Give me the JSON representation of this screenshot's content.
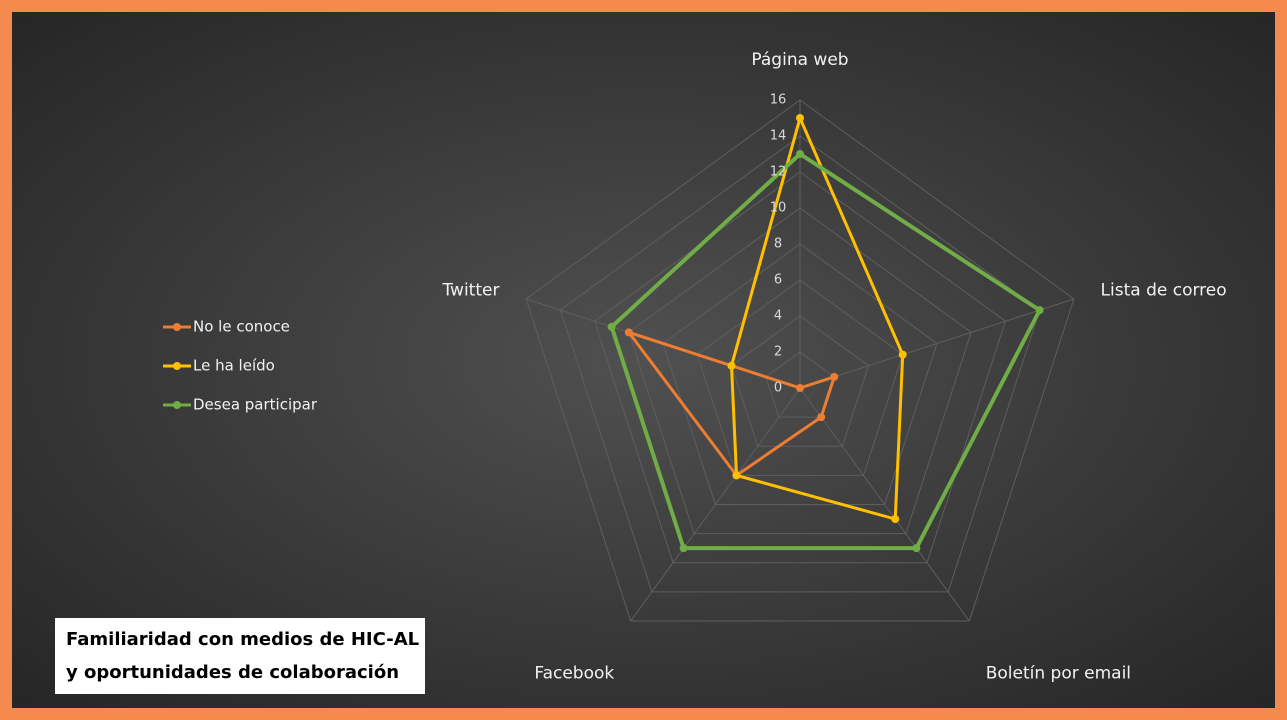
{
  "chart_data": {
    "type": "radar",
    "title": [
      "Familiaridad con medios de HIC-AL",
      "y oportunidades de colaboración"
    ],
    "categories": [
      "Página web",
      "Lista de correo",
      "Boletín por email",
      "Facebook",
      "Twitter"
    ],
    "series": [
      {
        "name": "No le conoce",
        "color": "#ed7d31",
        "values": [
          0,
          2,
          2,
          6,
          10
        ]
      },
      {
        "name": "Le ha leído",
        "color": "#ffc000",
        "values": [
          15,
          6,
          9,
          6,
          4
        ]
      },
      {
        "name": "Desea participar",
        "color": "#70ad47",
        "values": [
          13,
          14,
          11,
          11,
          11
        ]
      }
    ],
    "ylim": [
      0,
      16
    ],
    "yticks": [
      0,
      2,
      4,
      6,
      8,
      10,
      12,
      14,
      16
    ],
    "grid": true,
    "legend": "left"
  }
}
